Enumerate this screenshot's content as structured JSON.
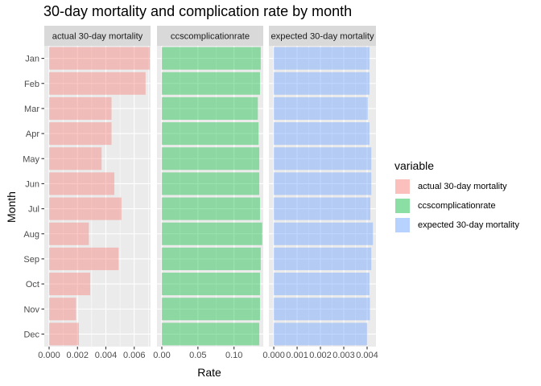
{
  "title": "30-day mortality and complication rate by month",
  "xlabel": "Rate",
  "ylabel": "Month",
  "legend": {
    "title": "variable",
    "items": [
      {
        "label": "actual 30-day mortality",
        "color": "#F8766D"
      },
      {
        "label": "ccscomplicationrate",
        "color": "#00BA38"
      },
      {
        "label": "expected 30-day mortality",
        "color": "#619CFF"
      }
    ]
  },
  "chart_data": {
    "type": "bar",
    "orientation": "horizontal",
    "title": "30-day mortality and complication rate by month",
    "xlabel": "Rate",
    "ylabel": "Month",
    "grid": true,
    "legend_position": "right",
    "categories": [
      "Jan",
      "Feb",
      "Mar",
      "Apr",
      "May",
      "Jun",
      "Jul",
      "Aug",
      "Sep",
      "Oct",
      "Nov",
      "Dec"
    ],
    "facets": [
      {
        "name": "actual 30-day mortality",
        "color": "#F8766D",
        "xlim": [
          -0.00034,
          0.00715
        ],
        "ticks": [
          0,
          0.002,
          0.004,
          0.006
        ],
        "tick_labels": [
          "0.000",
          "0.002",
          "0.004",
          "0.006"
        ],
        "values": [
          0.0071,
          0.0068,
          0.0044,
          0.0044,
          0.0037,
          0.0046,
          0.0051,
          0.0028,
          0.0049,
          0.0029,
          0.0019,
          0.0021
        ]
      },
      {
        "name": "ccscomplicationrate",
        "color": "#00BA38",
        "xlim": [
          -0.0067,
          0.1405
        ],
        "ticks": [
          0,
          0.05,
          0.1
        ],
        "tick_labels": [
          "0.00",
          "0.05",
          "0.10"
        ],
        "values": [
          0.137,
          0.136,
          0.133,
          0.134,
          0.135,
          0.135,
          0.136,
          0.139,
          0.137,
          0.136,
          0.136,
          0.135
        ]
      },
      {
        "name": "expected 30-day mortality",
        "color": "#619CFF",
        "xlim": [
          -0.00021,
          0.00438
        ],
        "ticks": [
          0,
          0.001,
          0.002,
          0.003,
          0.004
        ],
        "tick_labels": [
          "0.000",
          "0.001",
          "0.002",
          "0.003",
          "0.004"
        ],
        "values": [
          0.0041,
          0.0041,
          0.00403,
          0.0041,
          0.00418,
          0.00418,
          0.00414,
          0.00425,
          0.00418,
          0.0041,
          0.00412,
          0.00401
        ]
      }
    ]
  }
}
